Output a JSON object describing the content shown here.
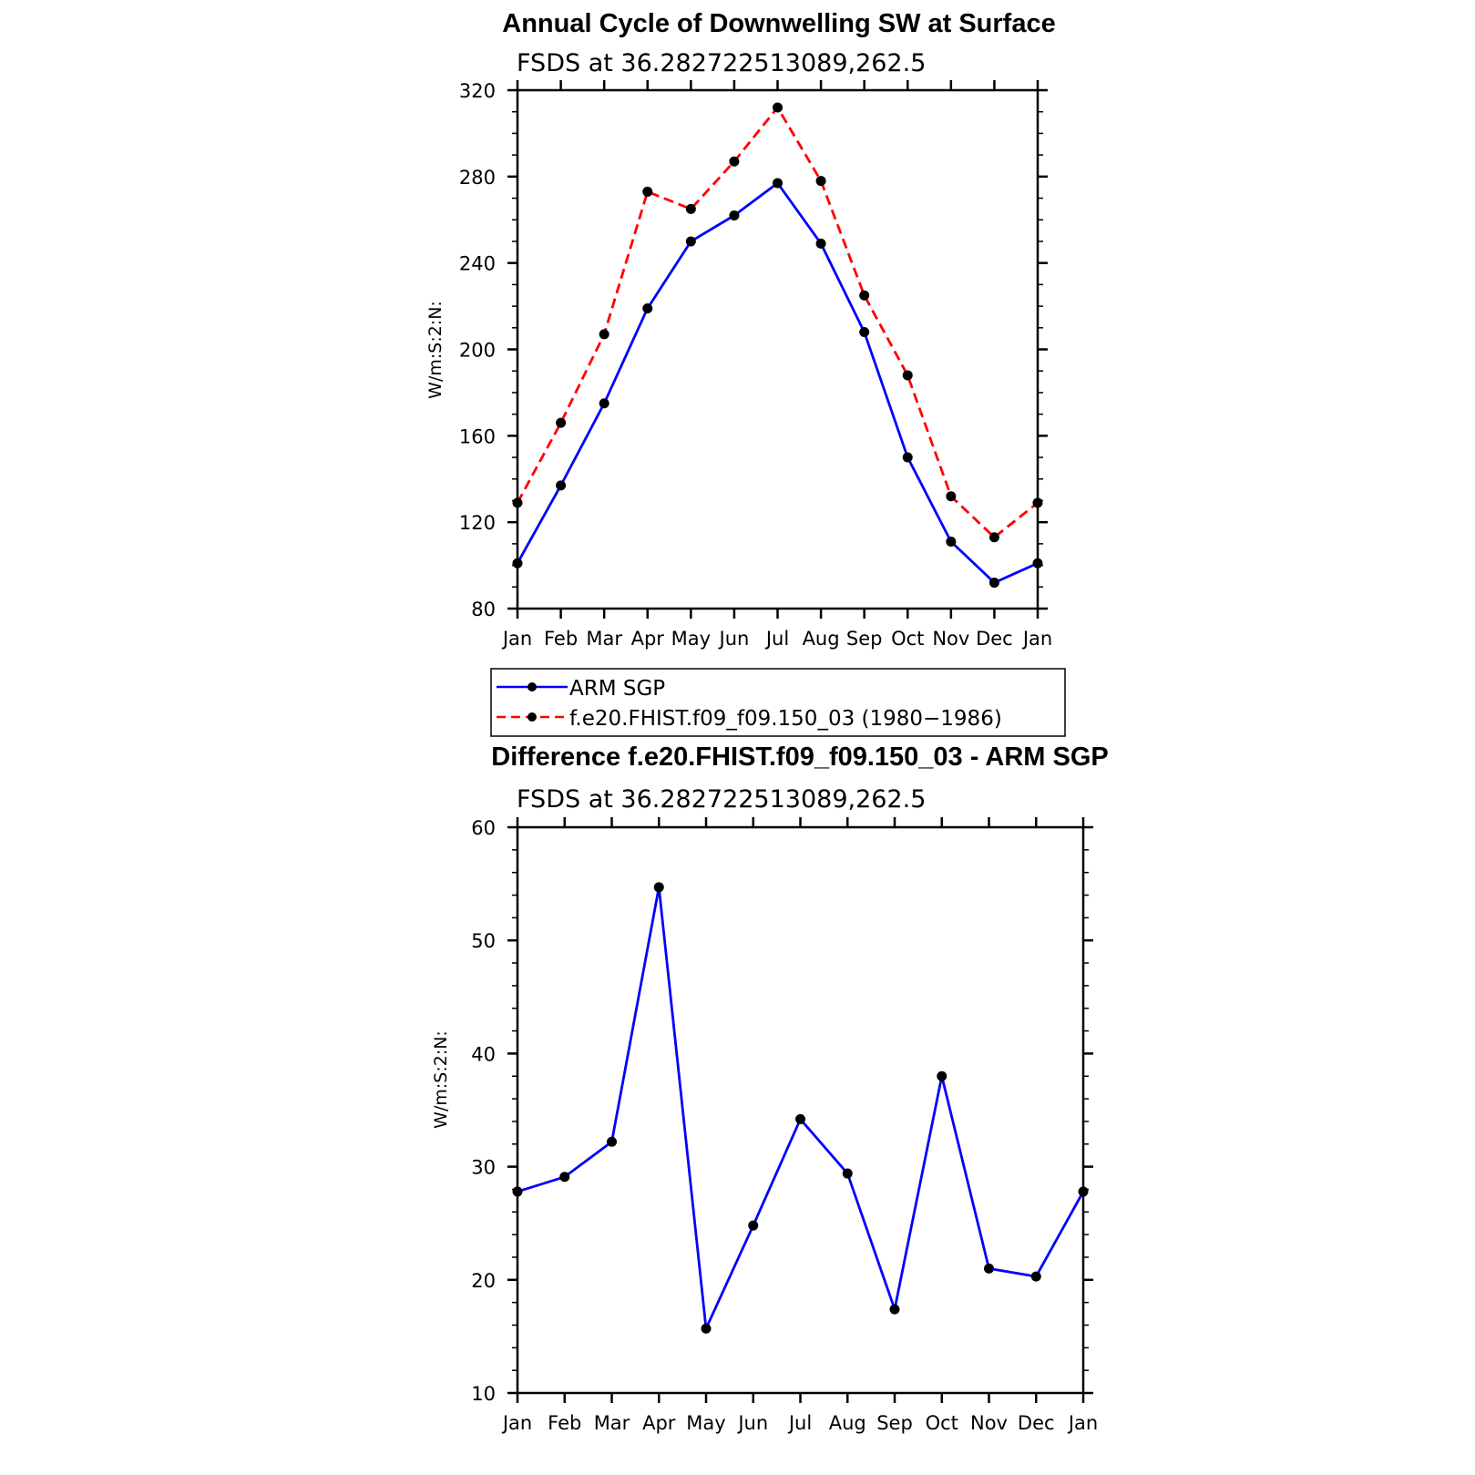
{
  "chart_data": [
    {
      "type": "line",
      "title": "Annual Cycle of Downwelling SW at Surface",
      "subtitle": "FSDS at 36.282722513089,262.5",
      "ylabel": "W/m:S:2:N:",
      "xlabel": "",
      "categories": [
        "Jan",
        "Feb",
        "Mar",
        "Apr",
        "May",
        "Jun",
        "Jul",
        "Aug",
        "Sep",
        "Oct",
        "Nov",
        "Dec",
        "Jan"
      ],
      "ylim": [
        80,
        320
      ],
      "yticks": [
        80,
        120,
        160,
        200,
        240,
        280,
        320
      ],
      "series": [
        {
          "name": "ARM SGP",
          "color": "#0000ff",
          "style": "solid",
          "values": [
            101,
            137,
            175,
            219,
            250,
            262,
            277,
            249,
            208,
            150,
            111,
            92,
            101
          ]
        },
        {
          "name": "f.e20.FHIST.f09_f09.150_03 (1980−1986)",
          "color": "#ff0000",
          "style": "dashed",
          "values": [
            129,
            166,
            207,
            273,
            265,
            287,
            312,
            278,
            225,
            188,
            132,
            113,
            129
          ]
        }
      ],
      "legend": "below"
    },
    {
      "type": "line",
      "title": "Difference f.e20.FHIST.f09_f09.150_03 - ARM SGP",
      "subtitle": "FSDS at 36.282722513089,262.5",
      "ylabel": "W/m:S:2:N:",
      "xlabel": "",
      "categories": [
        "Jan",
        "Feb",
        "Mar",
        "Apr",
        "May",
        "Jun",
        "Jul",
        "Aug",
        "Sep",
        "Oct",
        "Nov",
        "Dec",
        "Jan"
      ],
      "ylim": [
        10,
        60
      ],
      "yticks": [
        10,
        20,
        30,
        40,
        50,
        60
      ],
      "series": [
        {
          "color": "#0000ff",
          "style": "solid",
          "values": [
            27.8,
            29.1,
            32.2,
            54.7,
            15.7,
            24.8,
            34.2,
            29.4,
            17.4,
            38.0,
            21.0,
            20.3,
            27.8
          ]
        }
      ]
    }
  ]
}
